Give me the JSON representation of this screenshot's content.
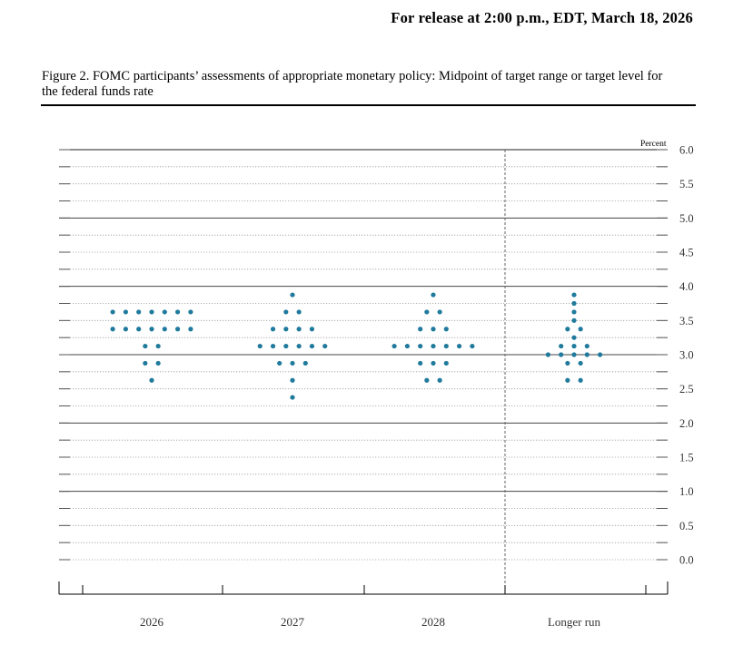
{
  "header": {
    "release_text": "For release at 2:00 p.m., EDT, March 18, 2026",
    "figure_title": "Figure 2. FOMC participants’ assessments of appropriate monetary policy: Midpoint of target range or target level for the federal funds rate"
  },
  "chart_data": {
    "type": "scatter",
    "subtype": "dot plot",
    "unit_label": "Percent",
    "ylim": [
      0.0,
      6.0
    ],
    "ytick_step": 0.25,
    "ytick_labels": [
      "6.0",
      "5.5",
      "5.0",
      "4.5",
      "4.0",
      "3.5",
      "3.0",
      "2.5",
      "2.0",
      "1.5",
      "1.0",
      "0.5",
      "0.0"
    ],
    "categories": [
      "2026",
      "2027",
      "2028",
      "Longer run"
    ],
    "dot_color": "#1f7a9c",
    "groups": [
      {
        "category": "2026",
        "counts": [
          {
            "y": 3.625,
            "n": 7
          },
          {
            "y": 3.375,
            "n": 7
          },
          {
            "y": 3.125,
            "n": 2
          },
          {
            "y": 2.875,
            "n": 2
          },
          {
            "y": 2.625,
            "n": 1
          }
        ]
      },
      {
        "category": "2027",
        "counts": [
          {
            "y": 3.875,
            "n": 1
          },
          {
            "y": 3.625,
            "n": 2
          },
          {
            "y": 3.375,
            "n": 4
          },
          {
            "y": 3.125,
            "n": 6
          },
          {
            "y": 2.875,
            "n": 3
          },
          {
            "y": 2.625,
            "n": 1
          },
          {
            "y": 2.375,
            "n": 1
          }
        ]
      },
      {
        "category": "2028",
        "counts": [
          {
            "y": 3.875,
            "n": 1
          },
          {
            "y": 3.625,
            "n": 2
          },
          {
            "y": 3.375,
            "n": 3
          },
          {
            "y": 3.125,
            "n": 7
          },
          {
            "y": 2.875,
            "n": 3
          },
          {
            "y": 2.625,
            "n": 2
          }
        ]
      },
      {
        "category": "Longer run",
        "counts": [
          {
            "y": 3.875,
            "n": 1
          },
          {
            "y": 3.75,
            "n": 1
          },
          {
            "y": 3.625,
            "n": 1
          },
          {
            "y": 3.5,
            "n": 1
          },
          {
            "y": 3.375,
            "n": 2
          },
          {
            "y": 3.25,
            "n": 1
          },
          {
            "y": 3.125,
            "n": 3
          },
          {
            "y": 3.0,
            "n": 5
          },
          {
            "y": 2.875,
            "n": 2
          },
          {
            "y": 2.625,
            "n": 2
          }
        ]
      }
    ],
    "grid": true,
    "separator_before": "Longer run"
  }
}
